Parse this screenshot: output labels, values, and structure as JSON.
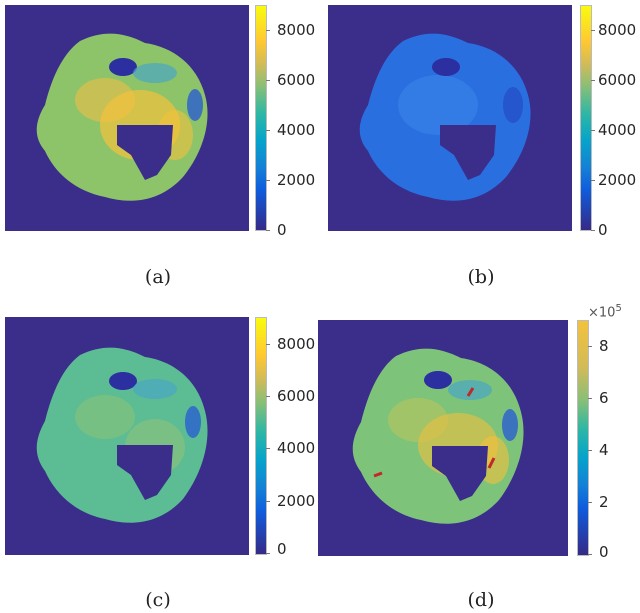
{
  "panels": [
    {
      "id": "a",
      "caption": "(a)",
      "colorbar_ticks": [
        "8000",
        "6000",
        "4000",
        "2000",
        "0"
      ],
      "colorbar_range": [
        0,
        9000
      ],
      "appearance": "bright yellow-green object, yellow hot spots around hole"
    },
    {
      "id": "b",
      "caption": "(b)",
      "colorbar_ticks": [
        "8000",
        "6000",
        "4000",
        "2000",
        "0"
      ],
      "colorbar_range": [
        0,
        9000
      ],
      "appearance": "object mostly uniform blue (low values)"
    },
    {
      "id": "c",
      "caption": "(c)",
      "colorbar_ticks": [
        "8000",
        "6000",
        "4000",
        "2000",
        "0"
      ],
      "colorbar_range": [
        0,
        9000
      ],
      "appearance": "object mostly teal-green (mid values)"
    },
    {
      "id": "d",
      "caption": "(d)",
      "colorbar_ticks": [
        "8",
        "6",
        "4",
        "2",
        "0"
      ],
      "colorbar_range": [
        0,
        9
      ],
      "colorbar_exponent": "×10",
      "colorbar_exponent_power": "5",
      "appearance": "noisy green-yellow object with three red marker segments"
    }
  ],
  "colors": {
    "background": "#3b2d8a",
    "object_a": "#8dc46a",
    "object_b": "#2a6fe0",
    "object_c": "#5cbc93",
    "object_d": "#7ec37a",
    "hot": "#f3c23c",
    "dark_blue": "#2b2fa0",
    "marker": "#c0282a"
  }
}
